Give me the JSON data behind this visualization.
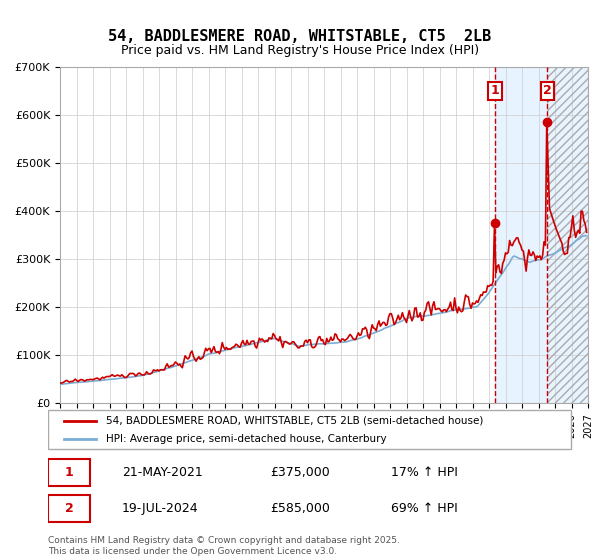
{
  "title": "54, BADDLESMERE ROAD, WHITSTABLE, CT5  2LB",
  "subtitle": "Price paid vs. HM Land Registry's House Price Index (HPI)",
  "legend_line1": "54, BADDLESMERE ROAD, WHITSTABLE, CT5 2LB (semi-detached house)",
  "legend_line2": "HPI: Average price, semi-detached house, Canterbury",
  "red_color": "#cc0000",
  "blue_color": "#7aadd4",
  "bg_shade_color": "#ddeeff",
  "annotation_color": "#cc0000",
  "grid_color": "#cccccc",
  "sale1_label": "1",
  "sale1_date": "21-MAY-2021",
  "sale1_price": "£375,000",
  "sale1_hpi": "17% ↑ HPI",
  "sale1_year": 2021.38,
  "sale1_value": 375000,
  "sale2_label": "2",
  "sale2_date": "19-JUL-2024",
  "sale2_price": "£585,000",
  "sale2_hpi": "69% ↑ HPI",
  "sale2_year": 2024.54,
  "sale2_value": 585000,
  "xmin": 1995,
  "xmax": 2027,
  "ymin": 0,
  "ymax": 700000,
  "footer": "Contains HM Land Registry data © Crown copyright and database right 2025.\nThis data is licensed under the Open Government Licence v3.0."
}
